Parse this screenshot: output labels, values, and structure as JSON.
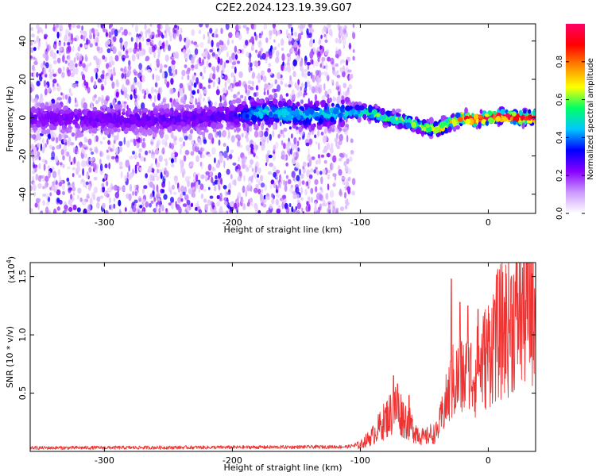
{
  "title": "C2E2.2024.123.19.39.G07",
  "chart_data": [
    {
      "type": "heatmap",
      "xlabel": "Height of straight line (km)",
      "ylabel": "Frequency (Hz)",
      "xlim": [
        -358,
        37
      ],
      "ylim": [
        -50,
        49
      ],
      "xticks": [
        -300,
        -200,
        -100,
        0
      ],
      "xtick_labels": [
        "-300",
        "-200",
        "-100",
        "0"
      ],
      "yticks": [
        40,
        20,
        0,
        -20,
        -40
      ],
      "ytick_labels": [
        "40",
        "20",
        "0",
        "-20",
        "-40"
      ],
      "colorbar": {
        "label": "Normalized spectral amplitude",
        "range": [
          0,
          1
        ],
        "ticks": [
          0.0,
          0.2,
          0.4,
          0.6,
          0.8
        ],
        "tick_labels": [
          "0.0",
          "0.2",
          "0.4",
          "0.6",
          "0.8"
        ],
        "colors": [
          "#ffffff",
          "#cc99ff",
          "#8800ff",
          "#0000ff",
          "#00c8ff",
          "#00ff66",
          "#ffff00",
          "#ff8800",
          "#ff0000",
          "#ff0066"
        ]
      },
      "noise_x_range": [
        -358,
        -105
      ],
      "ridge_points": [
        {
          "x": -358,
          "y": 0
        },
        {
          "x": -300,
          "y": -1
        },
        {
          "x": -250,
          "y": -1
        },
        {
          "x": -200,
          "y": 1
        },
        {
          "x": -170,
          "y": 3
        },
        {
          "x": -140,
          "y": 1
        },
        {
          "x": -110,
          "y": 3
        },
        {
          "x": -95,
          "y": 3
        },
        {
          "x": -80,
          "y": 0
        },
        {
          "x": -65,
          "y": -2
        },
        {
          "x": -50,
          "y": -5
        },
        {
          "x": -40,
          "y": -6
        },
        {
          "x": -30,
          "y": -3
        },
        {
          "x": -20,
          "y": 0
        },
        {
          "x": -10,
          "y": -1
        },
        {
          "x": 0,
          "y": 0
        },
        {
          "x": 10,
          "y": 1
        },
        {
          "x": 20,
          "y": 0
        },
        {
          "x": 37,
          "y": 0
        }
      ],
      "ridge_amplitude": [
        {
          "x": -358,
          "a": 0.12
        },
        {
          "x": -200,
          "a": 0.15
        },
        {
          "x": -180,
          "a": 0.35
        },
        {
          "x": -110,
          "a": 0.35
        },
        {
          "x": -90,
          "a": 0.45
        },
        {
          "x": -60,
          "a": 0.5
        },
        {
          "x": -30,
          "a": 0.65
        },
        {
          "x": -10,
          "a": 0.85
        },
        {
          "x": 37,
          "a": 0.95
        }
      ]
    },
    {
      "type": "line",
      "xlabel": "Height of straight line (km)",
      "ylabel": "SNR (10 * v/v)",
      "scale_label": "(x10",
      "scale_exp": "4",
      "scale_close": ")",
      "xlim": [
        -358,
        37
      ],
      "ylim": [
        0,
        1.62
      ],
      "xticks": [
        -300,
        -200,
        -100,
        0
      ],
      "xtick_labels": [
        "-300",
        "-200",
        "-100",
        "0"
      ],
      "yticks": [
        0.5,
        1.0,
        1.5
      ],
      "ytick_labels": [
        "0.5",
        "1.0",
        "1.5"
      ],
      "color": "#ee3333",
      "envelope": [
        {
          "x": -358,
          "y": 0.03
        },
        {
          "x": -200,
          "y": 0.035
        },
        {
          "x": -110,
          "y": 0.04
        },
        {
          "x": -100,
          "y": 0.06
        },
        {
          "x": -90,
          "y": 0.15
        },
        {
          "x": -80,
          "y": 0.3
        },
        {
          "x": -72,
          "y": 0.4
        },
        {
          "x": -65,
          "y": 0.3
        },
        {
          "x": -58,
          "y": 0.2
        },
        {
          "x": -50,
          "y": 0.12
        },
        {
          "x": -40,
          "y": 0.2
        },
        {
          "x": -33,
          "y": 0.5
        },
        {
          "x": -28,
          "y": 0.7
        },
        {
          "x": -20,
          "y": 0.75
        },
        {
          "x": -10,
          "y": 0.8
        },
        {
          "x": -3,
          "y": 0.95
        },
        {
          "x": 5,
          "y": 1.15
        },
        {
          "x": 15,
          "y": 1.3
        },
        {
          "x": 25,
          "y": 1.45
        },
        {
          "x": 37,
          "y": 1.55
        }
      ],
      "spikes": [
        {
          "x": -74,
          "y": 0.65
        },
        {
          "x": -71,
          "y": 0.58
        },
        {
          "x": -62,
          "y": 0.48
        },
        {
          "x": -29,
          "y": 1.48
        },
        {
          "x": -22,
          "y": 1.28
        },
        {
          "x": -16,
          "y": 1.25
        },
        {
          "x": -8,
          "y": 1.22
        },
        {
          "x": 5,
          "y": 1.3
        }
      ]
    }
  ]
}
